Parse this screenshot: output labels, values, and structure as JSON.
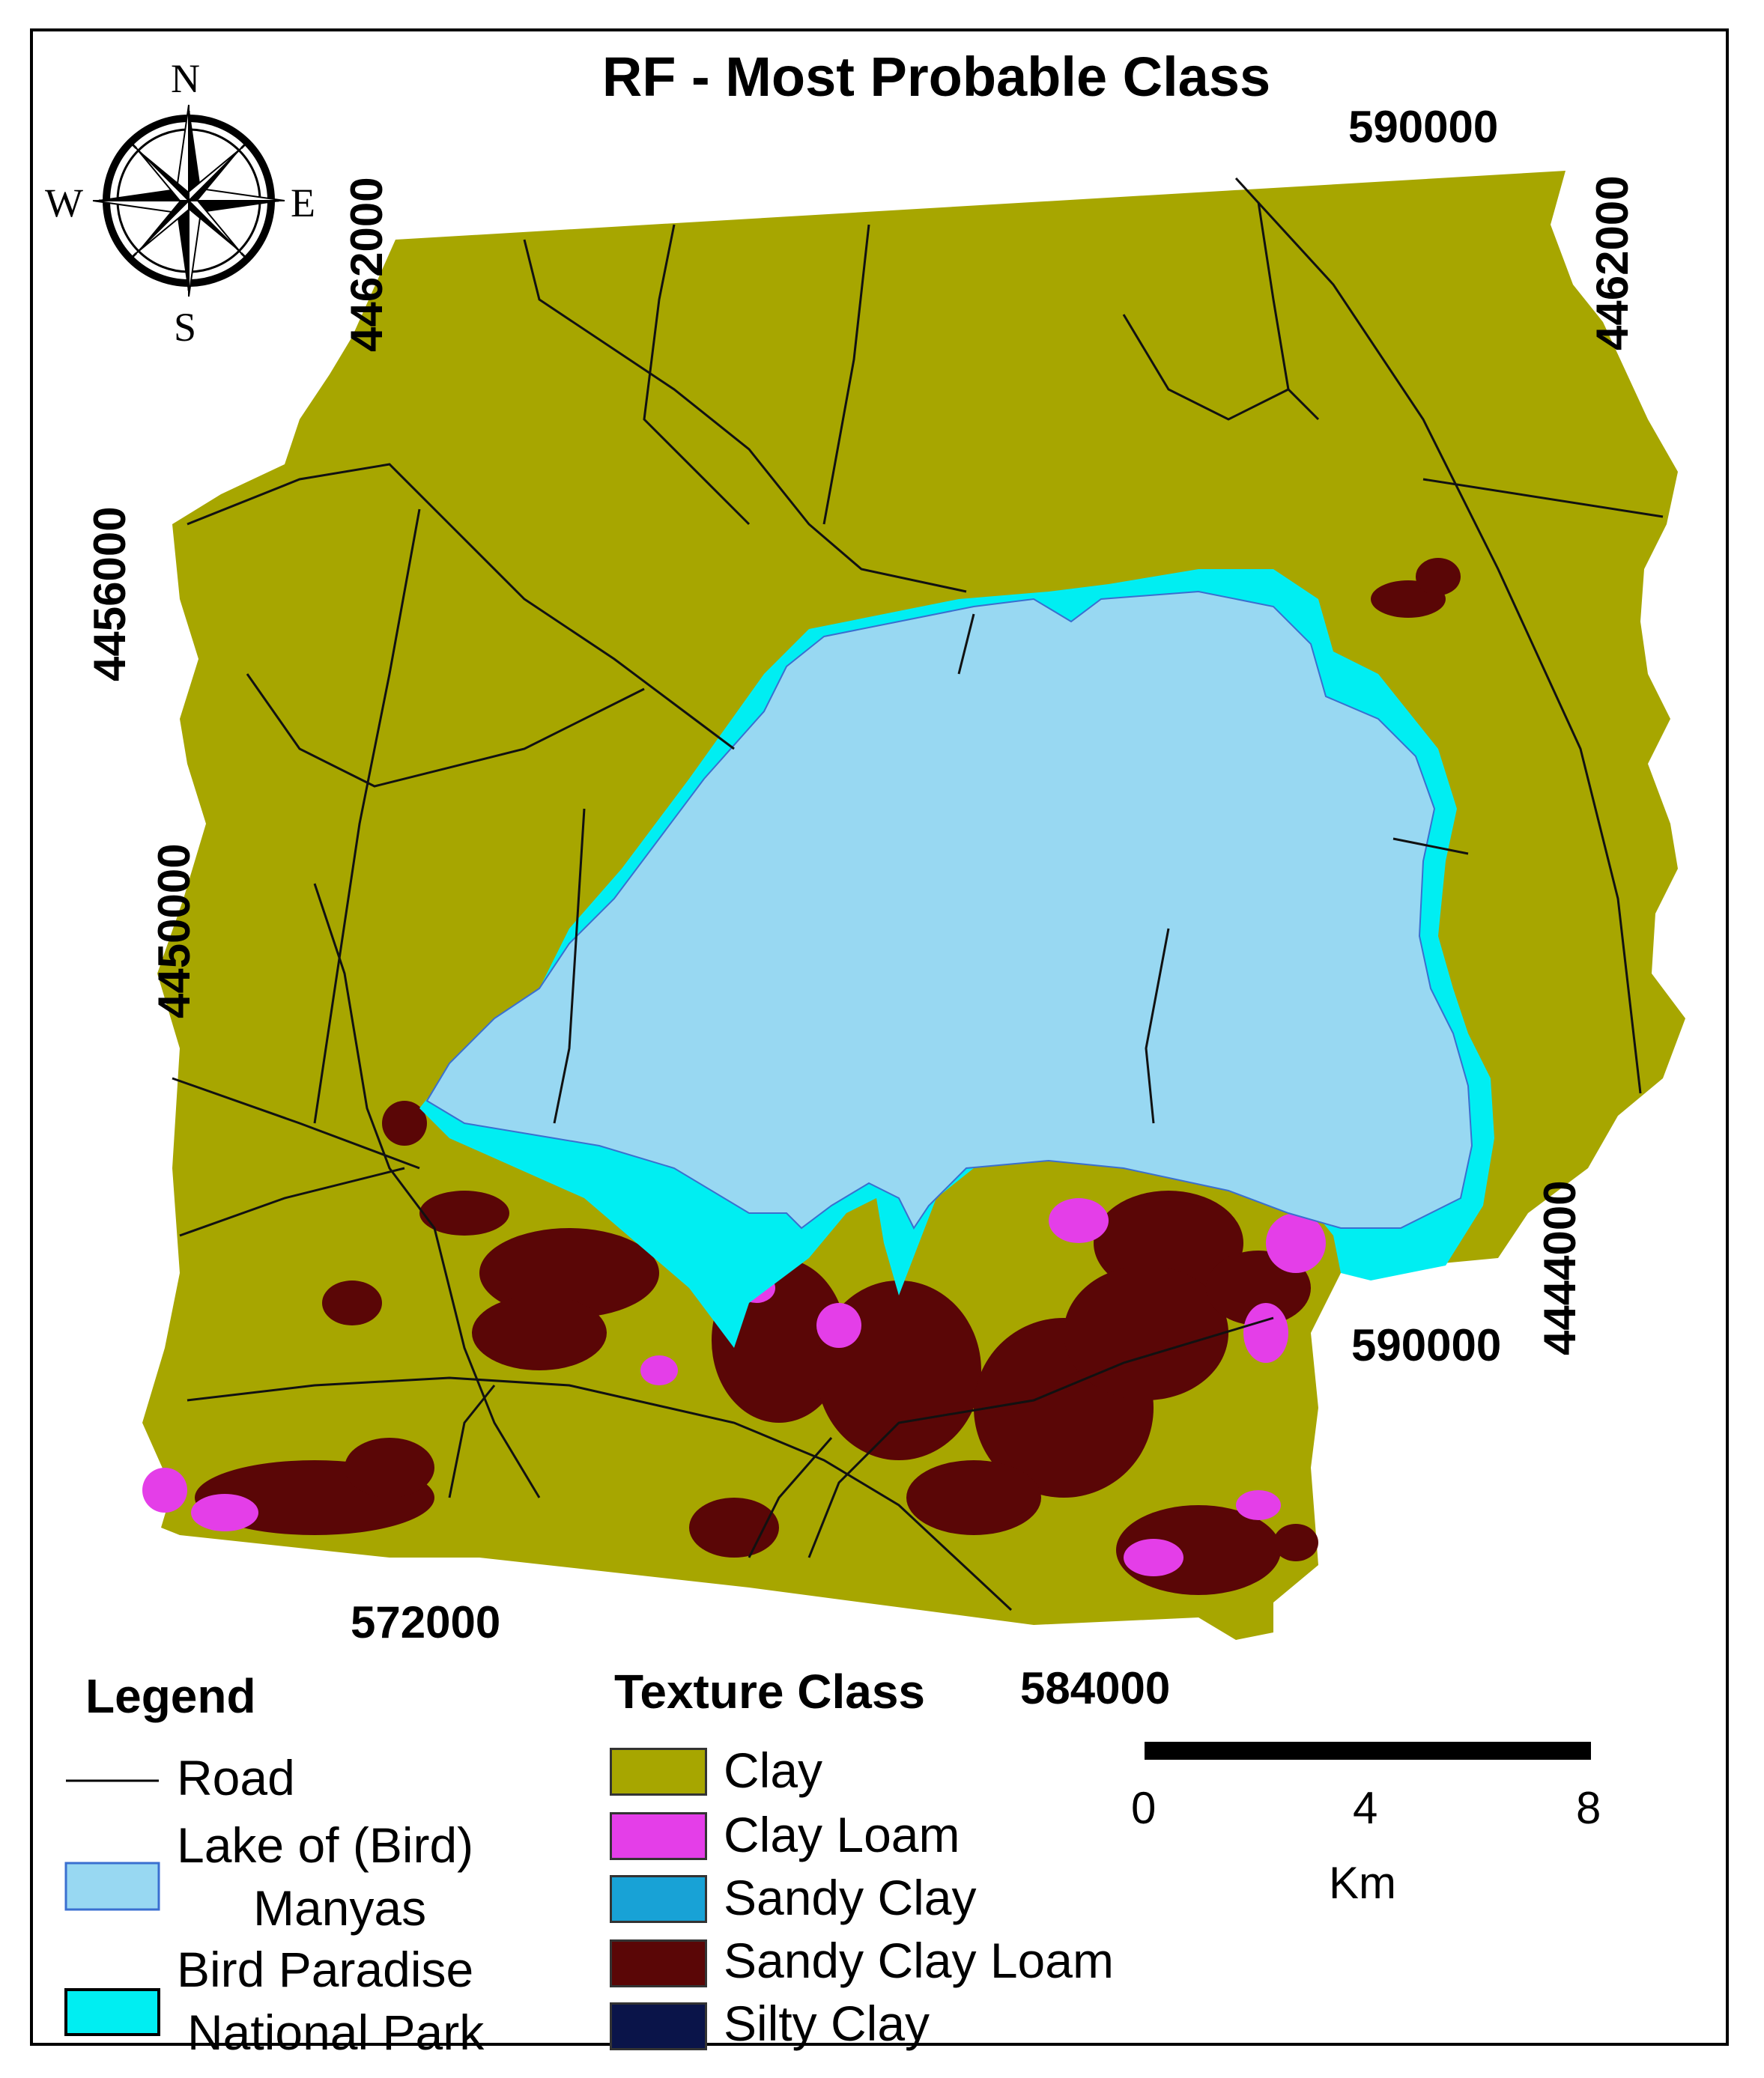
{
  "title": "RF - Most Probable Class",
  "compass": {
    "n": "N",
    "s": "S",
    "e": "E",
    "w": "W",
    "icon": "compass-rose-icon"
  },
  "coordinates": {
    "top_right_x": "590000",
    "bottom_right_x": "590000",
    "bottom_x1": "572000",
    "bottom_x2": "584000",
    "left_y_top": "4462000",
    "left_y_mid": "4456000",
    "left_y_low": "4450000",
    "right_y_top": "4462000",
    "right_y_low": "4444000"
  },
  "legend": {
    "heading": "Legend",
    "road": "Road",
    "lake_line1": "Lake of (Bird)",
    "lake_line2": "Manyas",
    "park_line1": "Bird Paradise",
    "park_line2": "National Park"
  },
  "texture": {
    "heading": "Texture Class",
    "classes": [
      {
        "label": "Clay",
        "color": "#a7a600"
      },
      {
        "label": "Clay Loam",
        "color": "#e43ee8"
      },
      {
        "label": "Sandy Clay",
        "color": "#18a2d6"
      },
      {
        "label": "Sandy Clay Loam",
        "color": "#5a0606"
      },
      {
        "label": "Silty Clay",
        "color": "#0a1449"
      }
    ]
  },
  "scale": {
    "t0": "0",
    "t1": "4",
    "t2": "8",
    "unit": "Km"
  },
  "colors": {
    "lake": "#98d8f2",
    "park": "#00eef2",
    "road": "#111111",
    "clay": "#a7a600",
    "sandy_clay_loam": "#5a0606",
    "clay_loam": "#e43ee8"
  }
}
